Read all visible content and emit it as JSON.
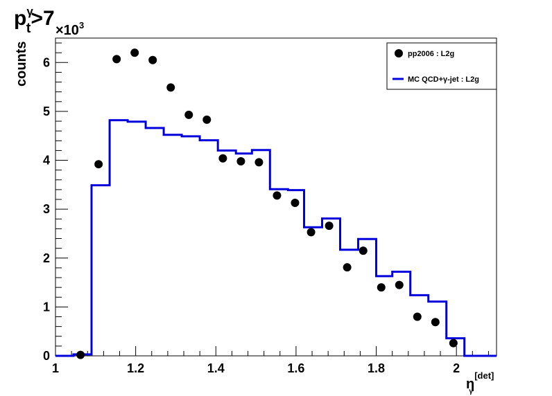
{
  "title": {
    "main": "p",
    "sub": "t",
    "sup": "γ",
    "rest": ">7"
  },
  "ylabel": "counts",
  "y_exponent": {
    "base": "×10",
    "power": "3"
  },
  "xlabel": {
    "main": "η",
    "sub": "γ",
    "sup": "[det]"
  },
  "chart_data": {
    "type": "scatter",
    "xlim": [
      1.0,
      2.1
    ],
    "ylim": [
      0,
      6.5
    ],
    "y_units_note": "×10^3",
    "x_ticks": [
      "1",
      "1.2",
      "1.4",
      "1.6",
      "1.8",
      "2"
    ],
    "x_tick_values": [
      1.0,
      1.2,
      1.4,
      1.6,
      1.8,
      2.0
    ],
    "y_ticks": [
      "0",
      "1",
      "2",
      "3",
      "4",
      "5",
      "6"
    ],
    "y_tick_values": [
      0,
      1,
      2,
      3,
      4,
      5,
      6
    ],
    "legend_position": "top-right",
    "series": [
      {
        "name": "pp2006 : L2g",
        "style": "markers",
        "color": "#000000",
        "x": [
          1.0625,
          1.1075,
          1.1525,
          1.1975,
          1.2425,
          1.2875,
          1.3325,
          1.3775,
          1.4175,
          1.4625,
          1.5075,
          1.5525,
          1.5975,
          1.6375,
          1.6825,
          1.7275,
          1.7675,
          1.8125,
          1.8575,
          1.9025,
          1.9475,
          1.9925
        ],
        "y": [
          0.02,
          3.92,
          6.07,
          6.2,
          6.05,
          5.49,
          4.93,
          4.83,
          4.04,
          3.98,
          3.96,
          3.28,
          3.13,
          2.53,
          2.66,
          1.81,
          2.15,
          1.4,
          1.45,
          0.8,
          0.69,
          0.26
        ]
      },
      {
        "name": "MC QCD+γ-jet : L2g",
        "style": "step",
        "color": "#0000dd",
        "edges": [
          1.0,
          1.045,
          1.09,
          1.135,
          1.18,
          1.225,
          1.27,
          1.315,
          1.36,
          1.405,
          1.45,
          1.49,
          1.535,
          1.58,
          1.62,
          1.665,
          1.71,
          1.755,
          1.8,
          1.84,
          1.885,
          1.93,
          1.975,
          2.02,
          2.1
        ],
        "values": [
          0.0,
          0.03,
          3.49,
          4.82,
          4.79,
          4.66,
          4.52,
          4.49,
          4.41,
          4.2,
          4.14,
          4.21,
          3.41,
          3.39,
          2.63,
          2.81,
          2.17,
          2.39,
          1.63,
          1.72,
          1.24,
          1.11,
          0.36,
          0.0
        ]
      }
    ]
  }
}
